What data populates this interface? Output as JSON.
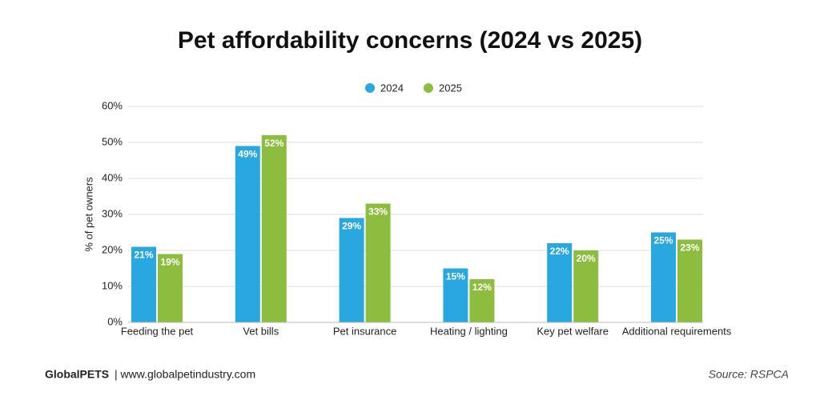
{
  "chart_data": {
    "type": "bar",
    "title": "Pet affordability concerns (2024 vs 2025)",
    "y_label": "% of pet owners",
    "categories": [
      "Feeding the pet",
      "Vet bills",
      "Pet insurance",
      "Heating / lighting",
      "Key pet welfare",
      "Additional requirements"
    ],
    "series": [
      {
        "name": "2024",
        "color": "#29a8e0",
        "values": [
          21,
          49,
          29,
          15,
          22,
          25
        ],
        "value_labels": [
          "21%",
          "49%",
          "29%",
          "15%",
          "22%",
          "25%"
        ]
      },
      {
        "name": "2025",
        "color": "#8cbd3f",
        "values": [
          19,
          52,
          33,
          12,
          20,
          23
        ],
        "value_labels": [
          "19%",
          "52%",
          "33%",
          "12%",
          "20%",
          "23%"
        ]
      }
    ],
    "ylim": [
      0,
      60
    ],
    "yticks": [
      {
        "value": 0,
        "label": "0%"
      },
      {
        "value": 10,
        "label": "10%"
      },
      {
        "value": 20,
        "label": "20%"
      },
      {
        "value": 30,
        "label": "30%"
      },
      {
        "value": 40,
        "label": "40%"
      },
      {
        "value": 50,
        "label": "50%"
      },
      {
        "value": 60,
        "label": "60%"
      }
    ],
    "grid": true,
    "legend": "top"
  },
  "footer": {
    "brand": "GlobalPETS",
    "site": "| www.globalpetindustry.com",
    "source": "Source: RSPCA"
  }
}
